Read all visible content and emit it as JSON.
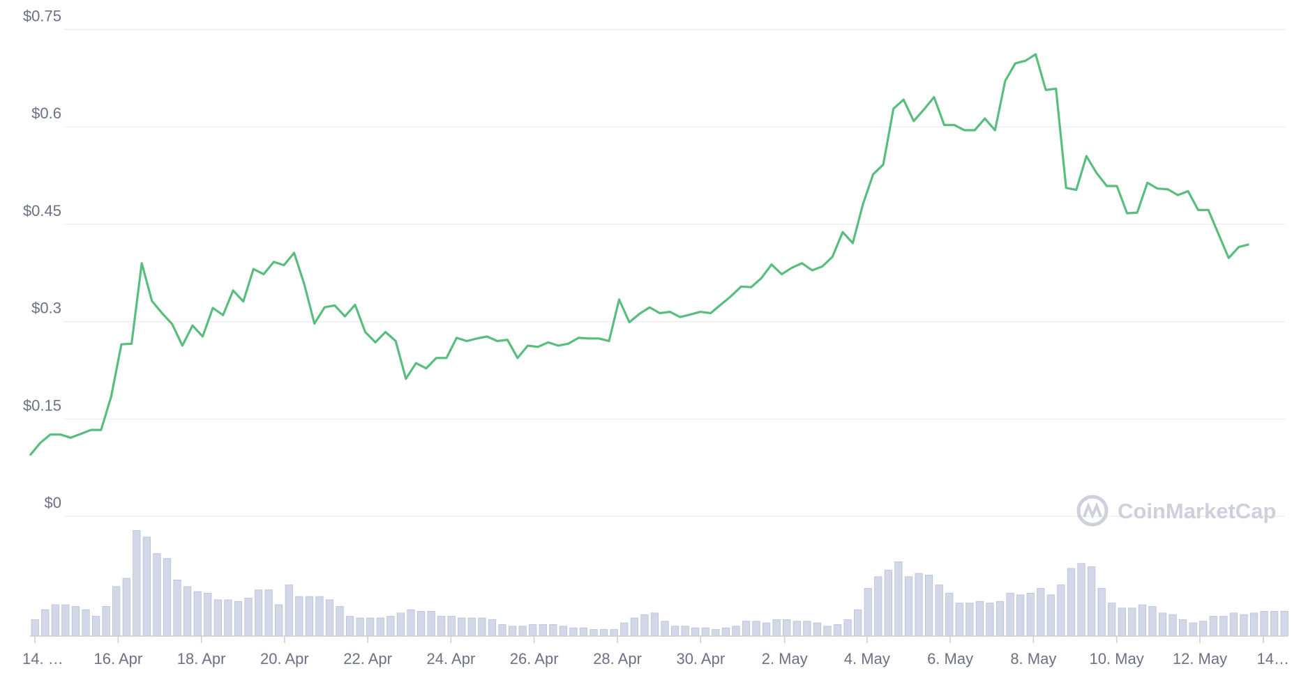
{
  "chart_data": {
    "type": "line",
    "brand": "CoinMarketCap",
    "ylim": [
      0,
      0.75
    ],
    "yticks": [
      {
        "value": 0,
        "label": "$0"
      },
      {
        "value": 0.15,
        "label": "$0.15"
      },
      {
        "value": 0.3,
        "label": "$0.3"
      },
      {
        "value": 0.45,
        "label": "$0.45"
      },
      {
        "value": 0.6,
        "label": "$0.6"
      },
      {
        "value": 0.75,
        "label": "$0.75"
      }
    ],
    "xlim": [
      0,
      123
    ],
    "xticks": [
      {
        "value": 0.49,
        "label": "14. …"
      },
      {
        "value": 8.68,
        "label": "16. Apr"
      },
      {
        "value": 16.87,
        "label": "18. Apr"
      },
      {
        "value": 25.06,
        "label": "20. Apr"
      },
      {
        "value": 33.25,
        "label": "22. Apr"
      },
      {
        "value": 41.44,
        "label": "24. Apr"
      },
      {
        "value": 49.63,
        "label": "26. Apr"
      },
      {
        "value": 57.83,
        "label": "28. Apr"
      },
      {
        "value": 66.02,
        "label": "30. Apr"
      },
      {
        "value": 74.29,
        "label": "2. May"
      },
      {
        "value": 82.4,
        "label": "4. May"
      },
      {
        "value": 90.59,
        "label": "6. May"
      },
      {
        "value": 98.78,
        "label": "8. May"
      },
      {
        "value": 106.97,
        "label": "10. May"
      },
      {
        "value": 115.17,
        "label": "12. May"
      },
      {
        "value": 121.41,
        "label": "14…"
      }
    ],
    "grid": true,
    "series": [
      {
        "color": "#58bd7d",
        "values": [
          0.094,
          0.113,
          0.126,
          0.126,
          0.121,
          0.127,
          0.133,
          0.133,
          0.185,
          0.265,
          0.266,
          0.39,
          0.332,
          0.313,
          0.296,
          0.263,
          0.294,
          0.277,
          0.321,
          0.31,
          0.348,
          0.331,
          0.381,
          0.373,
          0.392,
          0.387,
          0.406,
          0.358,
          0.297,
          0.322,
          0.325,
          0.308,
          0.326,
          0.284,
          0.268,
          0.284,
          0.27,
          0.212,
          0.236,
          0.228,
          0.244,
          0.244,
          0.275,
          0.27,
          0.274,
          0.277,
          0.27,
          0.272,
          0.244,
          0.263,
          0.261,
          0.268,
          0.263,
          0.266,
          0.275,
          0.274,
          0.274,
          0.27,
          0.334,
          0.299,
          0.312,
          0.322,
          0.313,
          0.315,
          0.307,
          0.311,
          0.315,
          0.313,
          0.326,
          0.339,
          0.354,
          0.353,
          0.367,
          0.388,
          0.373,
          0.383,
          0.39,
          0.379,
          0.385,
          0.4,
          0.438,
          0.421,
          0.481,
          0.527,
          0.542,
          0.628,
          0.642,
          0.609,
          0.627,
          0.646,
          0.603,
          0.603,
          0.595,
          0.595,
          0.613,
          0.595,
          0.671,
          0.698,
          0.702,
          0.712,
          0.657,
          0.659,
          0.506,
          0.503,
          0.555,
          0.529,
          0.509,
          0.509,
          0.467,
          0.468,
          0.514,
          0.505,
          0.504,
          0.495,
          0.501,
          0.472,
          0.472,
          0.435,
          0.398,
          0.415,
          0.419
        ]
      }
    ],
    "volume": {
      "color": "#d3d8e8",
      "axis": "y2",
      "values": [
        20,
        32,
        38,
        38,
        36,
        32,
        24,
        36,
        60,
        70,
        128,
        120,
        100,
        94,
        68,
        60,
        54,
        52,
        44,
        44,
        42,
        46,
        56,
        56,
        38,
        62,
        48,
        48,
        48,
        44,
        36,
        24,
        22,
        22,
        22,
        24,
        28,
        32,
        30,
        30,
        24,
        24,
        22,
        22,
        22,
        20,
        14,
        12,
        12,
        14,
        14,
        14,
        12,
        10,
        10,
        8,
        8,
        8,
        16,
        22,
        26,
        28,
        18,
        12,
        12,
        10,
        10,
        8,
        10,
        12,
        18,
        18,
        16,
        20,
        20,
        18,
        18,
        16,
        12,
        14,
        20,
        32,
        58,
        72,
        80,
        90,
        72,
        76,
        74,
        62,
        52,
        40,
        40,
        42,
        40,
        42,
        52,
        50,
        52,
        58,
        50,
        62,
        82,
        88,
        84,
        58,
        40,
        34,
        34,
        38,
        36,
        28,
        26,
        20,
        16,
        18,
        24,
        24,
        28,
        26,
        28,
        30,
        30,
        30
      ]
    },
    "y2lim": [
      0,
      130
    ]
  }
}
